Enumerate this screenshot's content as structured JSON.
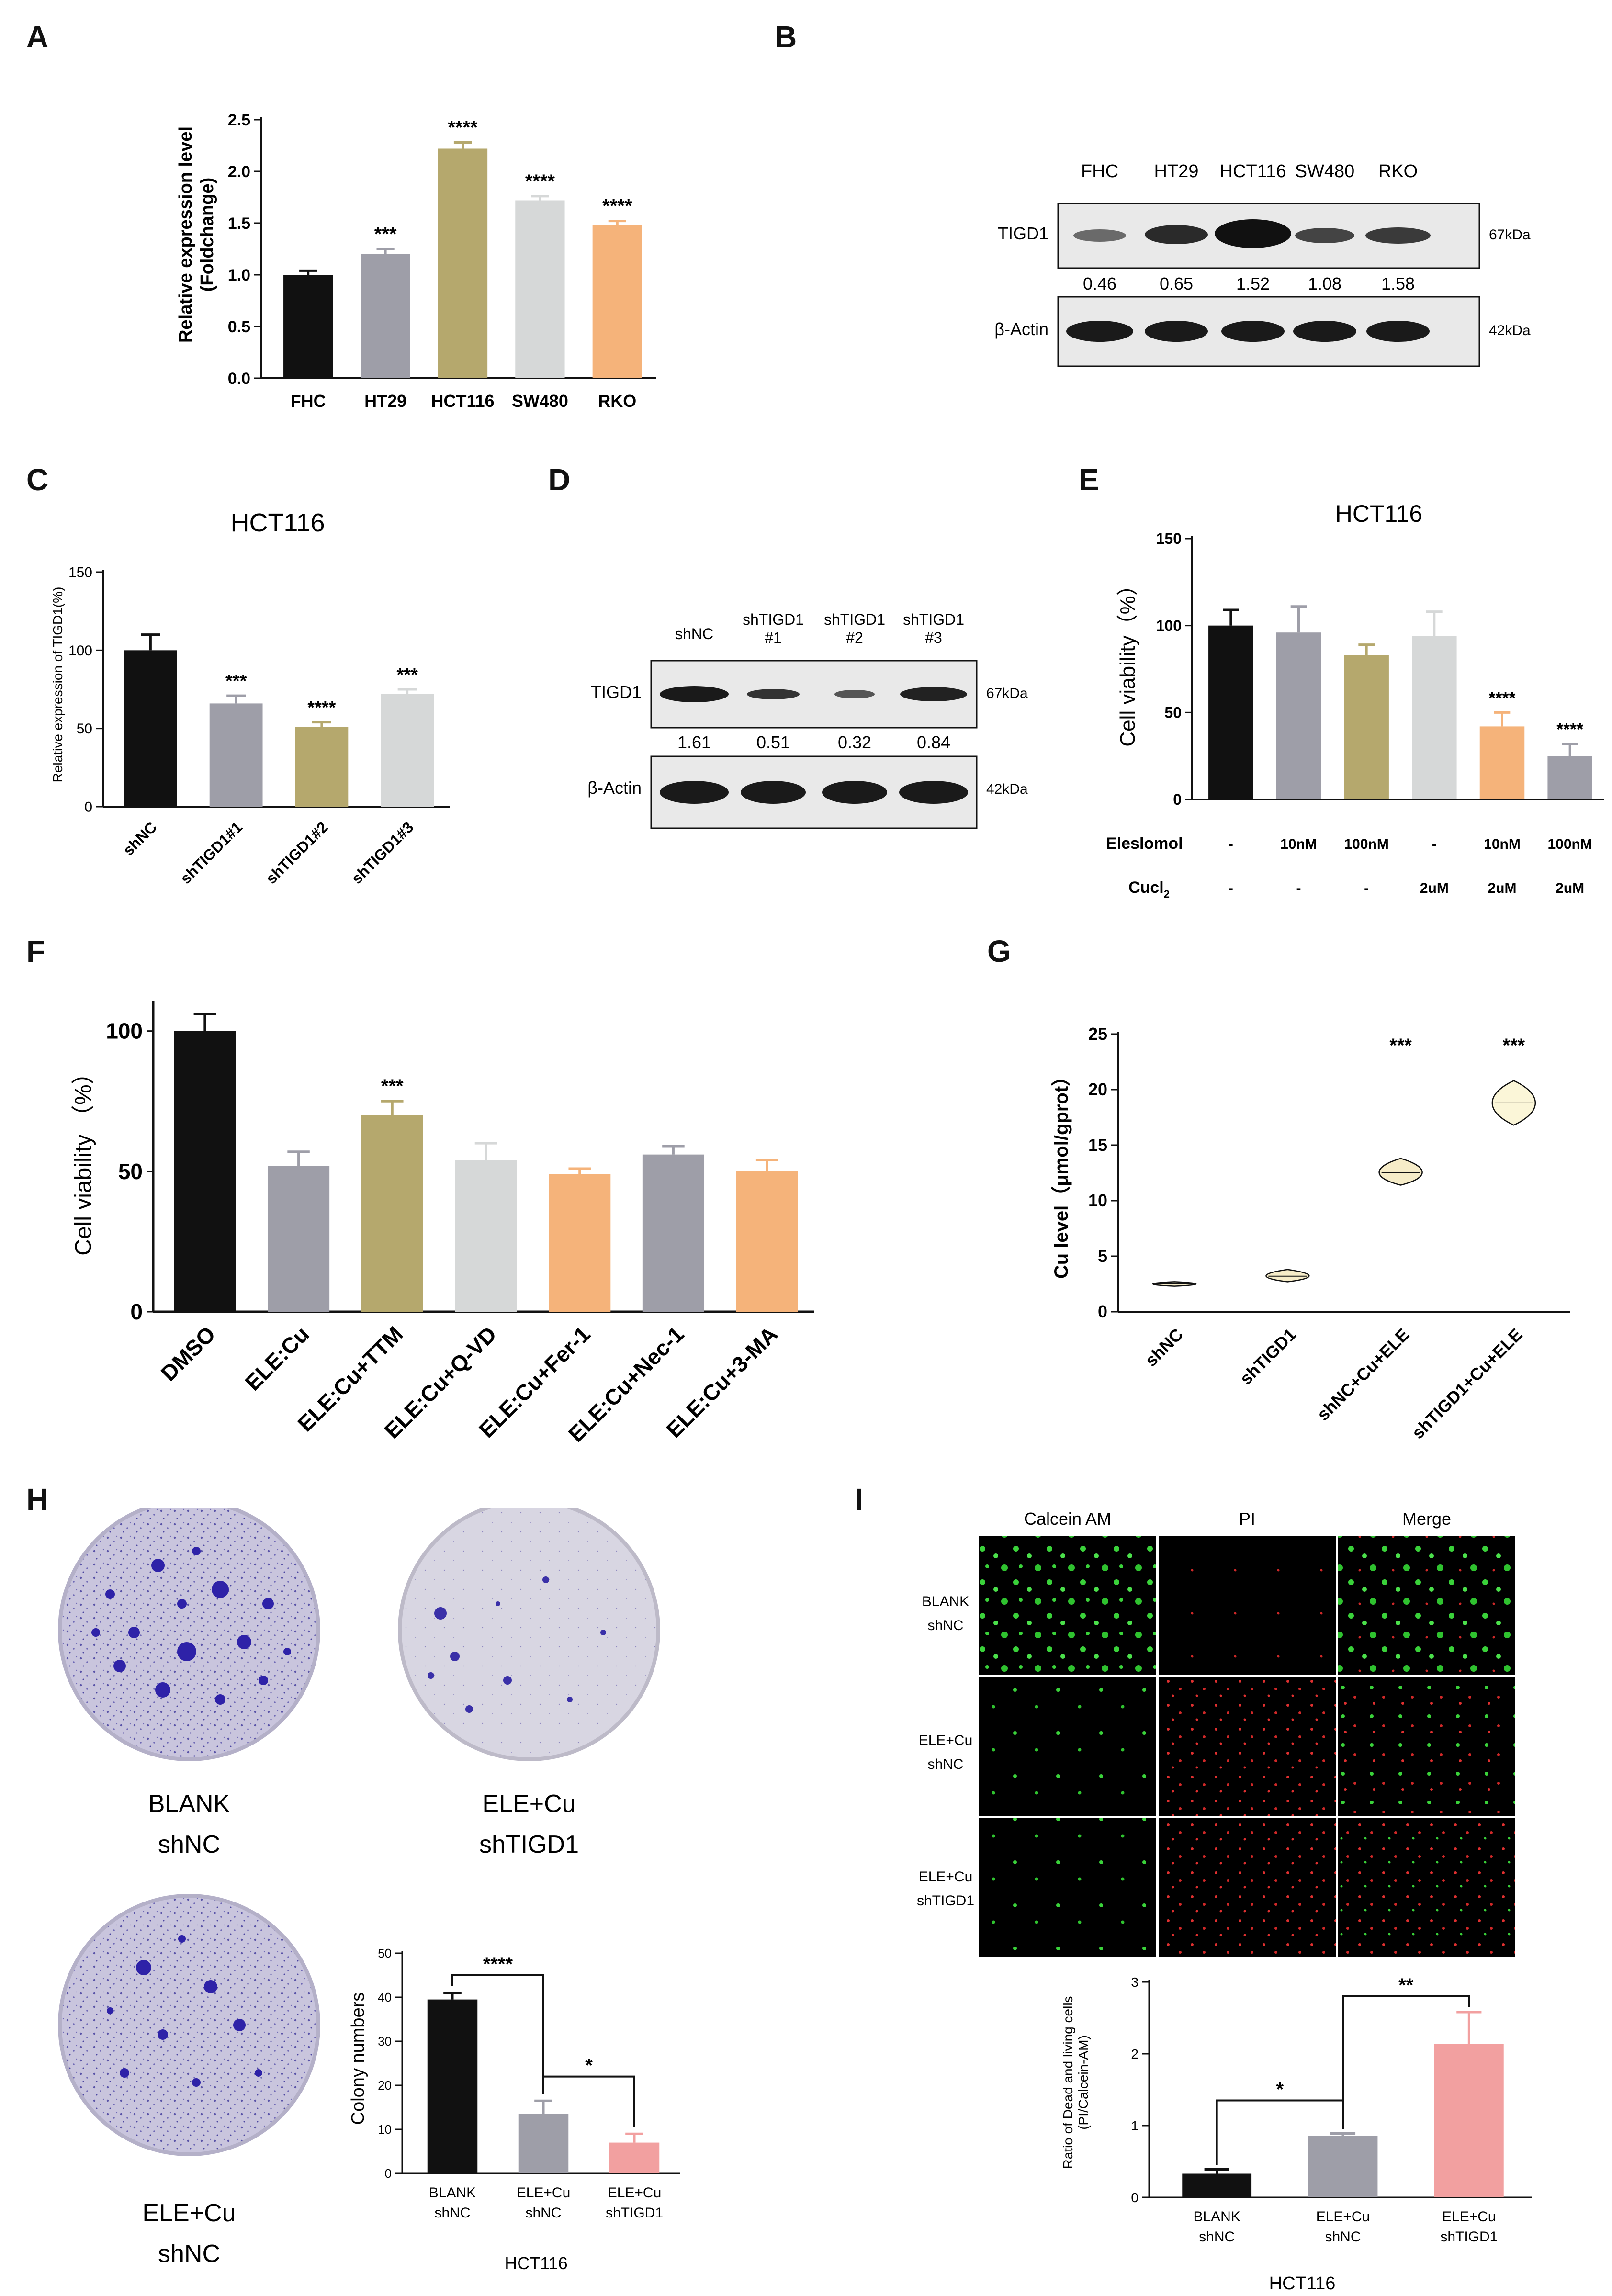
{
  "panels": {
    "A": {
      "letter": "A",
      "chart_data": {
        "type": "bar",
        "categories": [
          "FHC",
          "HT29",
          "HCT116",
          "SW480",
          "RKO"
        ],
        "values": [
          1.0,
          1.2,
          2.22,
          1.72,
          1.48
        ],
        "errors": [
          0.04,
          0.05,
          0.06,
          0.04,
          0.04
        ],
        "sig": [
          "",
          "***",
          "****",
          "****",
          "****"
        ],
        "colors": [
          "#111111",
          "#9e9ea8",
          "#b5a86d",
          "#d6d8d8",
          "#f5b37a"
        ],
        "ylabel": "Relative expression level (Foldchange)",
        "ylabel_lines": [
          "Relative expression level",
          "(Foldchange)"
        ],
        "yticks": [
          "0.0",
          "0.5",
          "1.0",
          "1.5",
          "2.0",
          "2.5"
        ],
        "ylim": [
          0,
          2.5
        ]
      }
    },
    "B": {
      "letter": "B",
      "lanes": [
        "FHC",
        "HT29",
        "HCT116",
        "SW480",
        "RKO"
      ],
      "row1_label": "TIGD1",
      "row1_kda": "67kDa",
      "quant": [
        "0.46",
        "0.65",
        "1.52",
        "1.08",
        "1.58"
      ],
      "row2_label": "β-Actin",
      "row2_kda": "42kDa"
    },
    "C": {
      "letter": "C",
      "chart_data": {
        "type": "bar",
        "title": "HCT116",
        "categories": [
          "shNC",
          "shTIGD1#1",
          "shTIGD1#2",
          "shTIGD1#3"
        ],
        "values": [
          100,
          66,
          51,
          72
        ],
        "errors": [
          10,
          5,
          3,
          3
        ],
        "sig": [
          "",
          "***",
          "****",
          "***"
        ],
        "colors": [
          "#111111",
          "#9e9ea8",
          "#b5a86d",
          "#d6d8d8"
        ],
        "ylabel": "Relative expression of TIGD1(%)",
        "yticks": [
          "0",
          "50",
          "100",
          "150"
        ],
        "ylim": [
          0,
          150
        ]
      }
    },
    "D": {
      "letter": "D",
      "lanes_line1": [
        "shNC",
        "shTIGD1",
        "shTIGD1",
        "shTIGD1"
      ],
      "lanes_line2": [
        "",
        "#1",
        "#2",
        "#3"
      ],
      "row1_label": "TIGD1",
      "row1_kda": "67kDa",
      "quant": [
        "1.61",
        "0.51",
        "0.32",
        "0.84"
      ],
      "row2_label": "β-Actin",
      "row2_kda": "42kDa"
    },
    "E": {
      "letter": "E",
      "chart_data": {
        "type": "bar",
        "title": "HCT116",
        "values": [
          100,
          96,
          83,
          94,
          42,
          25
        ],
        "errors": [
          9,
          15,
          6,
          14,
          8,
          7
        ],
        "sig": [
          "",
          "",
          "",
          "",
          "****",
          "****"
        ],
        "colors": [
          "#111111",
          "#9e9ea8",
          "#b5a86d",
          "#d6d8d8",
          "#f5b37a",
          "#9e9ea8"
        ],
        "ylabel": "Cell viability（%）",
        "yticks": [
          "0",
          "50",
          "100",
          "150"
        ],
        "ylim": [
          0,
          150
        ],
        "row1_label": "Eleslomol",
        "row1": [
          "-",
          "10nM",
          "100nM",
          "-",
          "10nM",
          "100nM"
        ],
        "row2_label": "Cucl",
        "row2_sub": "2",
        "row2": [
          "-",
          "-",
          "-",
          "2uM",
          "2uM",
          "2uM"
        ]
      }
    },
    "F": {
      "letter": "F",
      "chart_data": {
        "type": "bar",
        "categories": [
          "DMSO",
          "ELE:Cu",
          "ELE:Cu+TTM",
          "ELE:Cu+Q-VD",
          "ELE:Cu+Fer-1",
          "ELE:Cu+Nec-1",
          "ELE:Cu+3-MA"
        ],
        "values": [
          100,
          52,
          70,
          54,
          49,
          56,
          50
        ],
        "errors": [
          6,
          5,
          5,
          6,
          2,
          3,
          4
        ],
        "sig": [
          "",
          "",
          "***",
          "",
          "",
          "",
          ""
        ],
        "colors": [
          "#111111",
          "#9e9ea8",
          "#b5a86d",
          "#d6d8d8",
          "#f5b37a",
          "#9e9ea8",
          "#f5b37a"
        ],
        "ylabel": "Cell viability （%）",
        "yticks": [
          "0",
          "50",
          "100"
        ],
        "ylim": [
          0,
          110
        ]
      }
    },
    "G": {
      "letter": "G",
      "chart_data": {
        "type": "violin",
        "categories": [
          "shNC",
          "shTIGD1",
          "shNC+Cu+ELE",
          "shTIGD1+Cu+ELE"
        ],
        "medians": [
          2.5,
          3.2,
          12.5,
          18.8
        ],
        "ranges": [
          [
            2.3,
            2.7
          ],
          [
            2.7,
            3.8
          ],
          [
            11.4,
            13.8
          ],
          [
            16.8,
            20.8
          ]
        ],
        "sig": [
          "",
          "",
          "***",
          "***"
        ],
        "colors": [
          "#f6ecc8",
          "#f6ecc8",
          "#f6ecc8",
          "#fbf6d8"
        ],
        "ylabel": "Cu level（μmol/gprot）",
        "yticks": [
          "0",
          "5",
          "10",
          "15",
          "20",
          "25"
        ],
        "ylim": [
          0,
          25
        ]
      }
    },
    "H": {
      "letter": "H",
      "plate_labels": [
        [
          "BLANK",
          "shNC"
        ],
        [
          "ELE+Cu",
          "shTIGD1"
        ],
        [
          "ELE+Cu",
          "shNC"
        ]
      ],
      "chart_data": {
        "type": "bar",
        "categories": [
          [
            "BLANK",
            "shNC"
          ],
          [
            "ELE+Cu",
            "shNC"
          ],
          [
            "ELE+Cu",
            "shTIGD1"
          ]
        ],
        "values": [
          39.5,
          13.5,
          7
        ],
        "errors": [
          1.5,
          3,
          2
        ],
        "colors": [
          "#111111",
          "#9e9ea8",
          "#f2a0a0"
        ],
        "ylabel": "Colony numbers",
        "xlabel": "HCT116",
        "yticks": [
          "0",
          "10",
          "20",
          "30",
          "40",
          "50"
        ],
        "ylim": [
          0,
          50
        ],
        "bracket1": "****",
        "bracket2": "*"
      }
    },
    "I": {
      "letter": "I",
      "col_headers": [
        "Calcein AM",
        "PI",
        "Merge"
      ],
      "row_labels": [
        [
          "BLANK",
          "shNC"
        ],
        [
          "ELE+Cu",
          "shNC"
        ],
        [
          "ELE+Cu",
          "shTIGD1"
        ]
      ],
      "chart_data": {
        "type": "bar",
        "categories": [
          [
            "BLANK",
            "shNC"
          ],
          [
            "ELE+Cu",
            "shNC"
          ],
          [
            "ELE+Cu",
            "shTIGD1"
          ]
        ],
        "values": [
          0.33,
          0.86,
          2.14
        ],
        "errors": [
          0.06,
          0.03,
          0.44
        ],
        "colors": [
          "#111111",
          "#9e9ea8",
          "#f2a0a0"
        ],
        "ylabel_lines": [
          "Ratio of Dead and living cells",
          "(PI/Calcein-AM)"
        ],
        "xlabel": "HCT116",
        "yticks": [
          "0",
          "1",
          "2",
          "3"
        ],
        "ylim": [
          0,
          3
        ],
        "bracket1": "*",
        "bracket2": "**"
      }
    }
  }
}
